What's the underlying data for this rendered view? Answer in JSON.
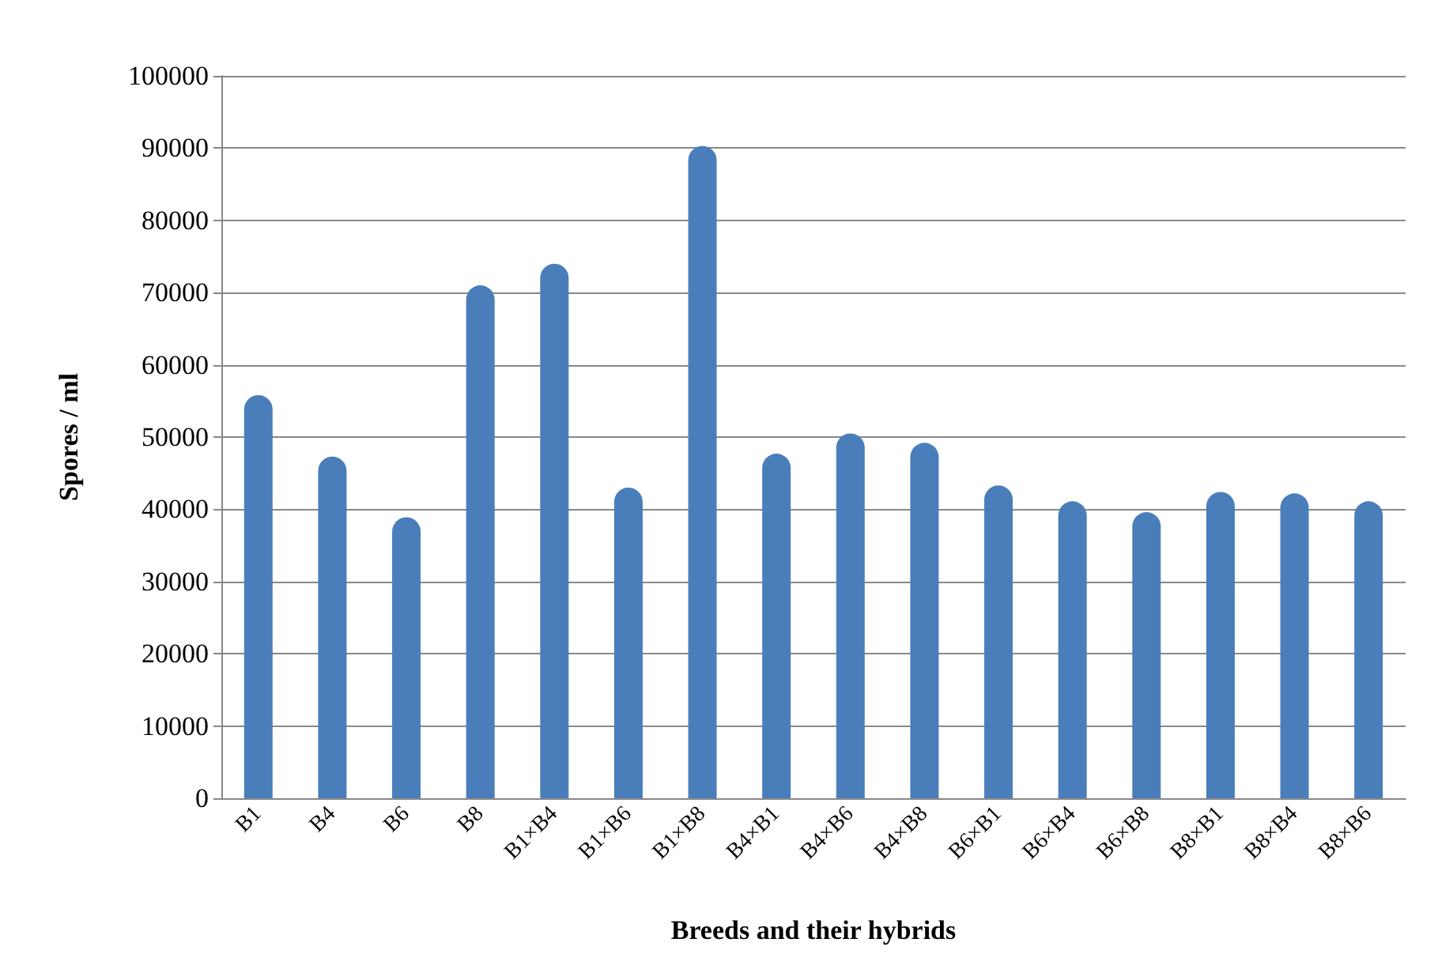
{
  "chart_data": {
    "type": "bar",
    "xlabel": "Breeds and their hybrids",
    "ylabel": "Spores / ml",
    "categories": [
      "B1",
      "B4",
      "B6",
      "B8",
      "B1×B4",
      "B1×B6",
      "B1×B8",
      "B4×B1",
      "B4×B6",
      "B4×B8",
      "B6×B1",
      "B6×B4",
      "B6×B8",
      "B8×B1",
      "B8×B4",
      "B8×B6"
    ],
    "values": [
      55800,
      47300,
      38900,
      71000,
      74000,
      43000,
      90300,
      47700,
      50500,
      49200,
      43300,
      41100,
      39600,
      42400,
      42200,
      41100
    ],
    "color": "#4a7ebb",
    "ylim": [
      0,
      100000
    ],
    "yticks": [
      0,
      10000,
      20000,
      30000,
      40000,
      50000,
      60000,
      70000,
      80000,
      90000,
      100000
    ],
    "grid": "y"
  }
}
